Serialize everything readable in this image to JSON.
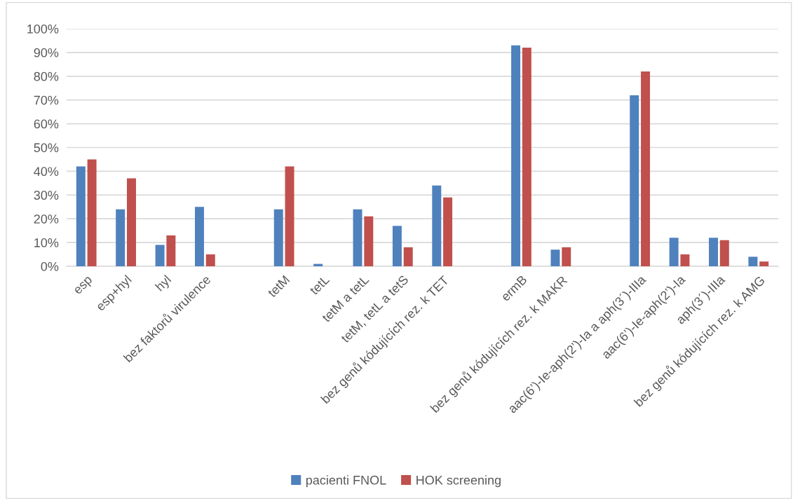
{
  "chart_data": {
    "type": "bar",
    "categories": [
      "esp",
      "esp+hyl",
      "hyl",
      "bez faktorů virulence",
      null,
      "tetM",
      "tetL",
      "tetM a tetL",
      "tetM, tetL a tetS",
      "bez genů kódujících rez. k TET",
      null,
      "ermB",
      "bez genů kódujících rez. k MAKR",
      null,
      "aac(6’)-Ie-aph(2’)-Ia a aph(3´)-IIIa",
      "aac(6’)-Ie-aph(2’)-Ia",
      "aph(3´)-IIIa",
      "bez genů kódujících rez. k AMG"
    ],
    "series": [
      {
        "name": "pacienti FNOL",
        "color": "#4f81bd",
        "values": [
          42,
          24,
          9,
          25,
          null,
          24,
          1,
          24,
          17,
          34,
          null,
          93,
          7,
          null,
          72,
          12,
          12,
          4
        ]
      },
      {
        "name": "HOK screening",
        "color": "#c0504d",
        "values": [
          45,
          37,
          13,
          5,
          null,
          42,
          0,
          21,
          8,
          29,
          null,
          92,
          8,
          null,
          82,
          5,
          11,
          2
        ]
      }
    ],
    "ylim": [
      0,
      100
    ],
    "yticks": [
      {
        "value": 0,
        "label": "0%"
      },
      {
        "value": 10,
        "label": "10%"
      },
      {
        "value": 20,
        "label": "20%"
      },
      {
        "value": 30,
        "label": "30%"
      },
      {
        "value": 40,
        "label": "40%"
      },
      {
        "value": 50,
        "label": "50%"
      },
      {
        "value": 60,
        "label": "60%"
      },
      {
        "value": 70,
        "label": "70%"
      },
      {
        "value": 80,
        "label": "80%"
      },
      {
        "value": 90,
        "label": "90%"
      },
      {
        "value": 100,
        "label": "100%"
      }
    ],
    "grid": "y",
    "legend": "bottom"
  }
}
